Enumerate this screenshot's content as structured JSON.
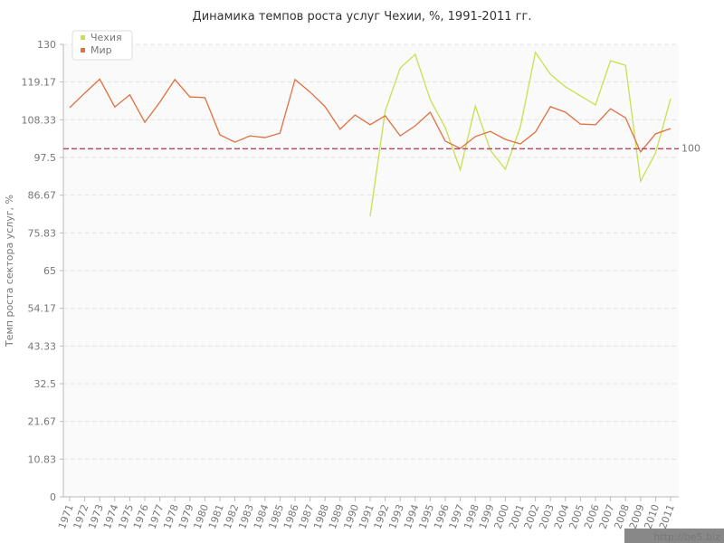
{
  "chart_data": {
    "type": "line",
    "title": "Динамика темпов роста услуг Чехии, %, 1991-2011 гг.",
    "y_label": "Темп роста сектора услуг, %",
    "categories": [
      "1971",
      "1972",
      "1973",
      "1974",
      "1975",
      "1976",
      "1977",
      "1978",
      "1979",
      "1980",
      "1981",
      "1982",
      "1983",
      "1984",
      "1985",
      "1986",
      "1987",
      "1988",
      "1989",
      "1990",
      "1991",
      "1992",
      "1993",
      "1994",
      "1995",
      "1996",
      "1997",
      "1998",
      "1999",
      "2000",
      "2001",
      "2002",
      "2003",
      "2004",
      "2005",
      "2006",
      "2007",
      "2008",
      "2009",
      "2010",
      "2011"
    ],
    "series": [
      {
        "name": "Чехия",
        "color": "#c8e04e",
        "values": [
          null,
          null,
          null,
          null,
          null,
          null,
          null,
          null,
          null,
          null,
          null,
          null,
          null,
          null,
          null,
          null,
          null,
          null,
          null,
          null,
          80.6,
          110.8,
          123.2,
          127.1,
          114.1,
          106.1,
          93.9,
          112.3,
          99.6,
          94.1,
          106.3,
          127.7,
          121.4,
          117.8,
          115.2,
          112.6,
          125.3,
          124,
          90.7,
          98.8,
          114.4
        ]
      },
      {
        "name": "Мир",
        "color": "#e0703f",
        "values": [
          111.8,
          116,
          120,
          112,
          115.5,
          107.6,
          113.4,
          119.9,
          114.9,
          114.7,
          104,
          101.9,
          103.7,
          103.2,
          104.5,
          119.9,
          116.3,
          112.1,
          105.6,
          109.7,
          106.9,
          109.5,
          103.7,
          106.6,
          110.5,
          102.2,
          100.1,
          103.5,
          105,
          102.7,
          101.4,
          104.8,
          112.1,
          110.5,
          107.1,
          106.9,
          111.5,
          108.9,
          99.1,
          104.3,
          105.8
        ]
      }
    ],
    "ylim": [
      0,
      130
    ],
    "yticks": [
      0,
      10.83,
      21.67,
      32.5,
      43.33,
      54.17,
      65,
      75.83,
      86.67,
      97.5,
      108.33,
      119.17,
      130
    ],
    "grid": true,
    "reference_line": {
      "value": 100,
      "label": "100",
      "color": "#b05068"
    },
    "legend": "top-left",
    "watermark": "http://be5.biz"
  }
}
